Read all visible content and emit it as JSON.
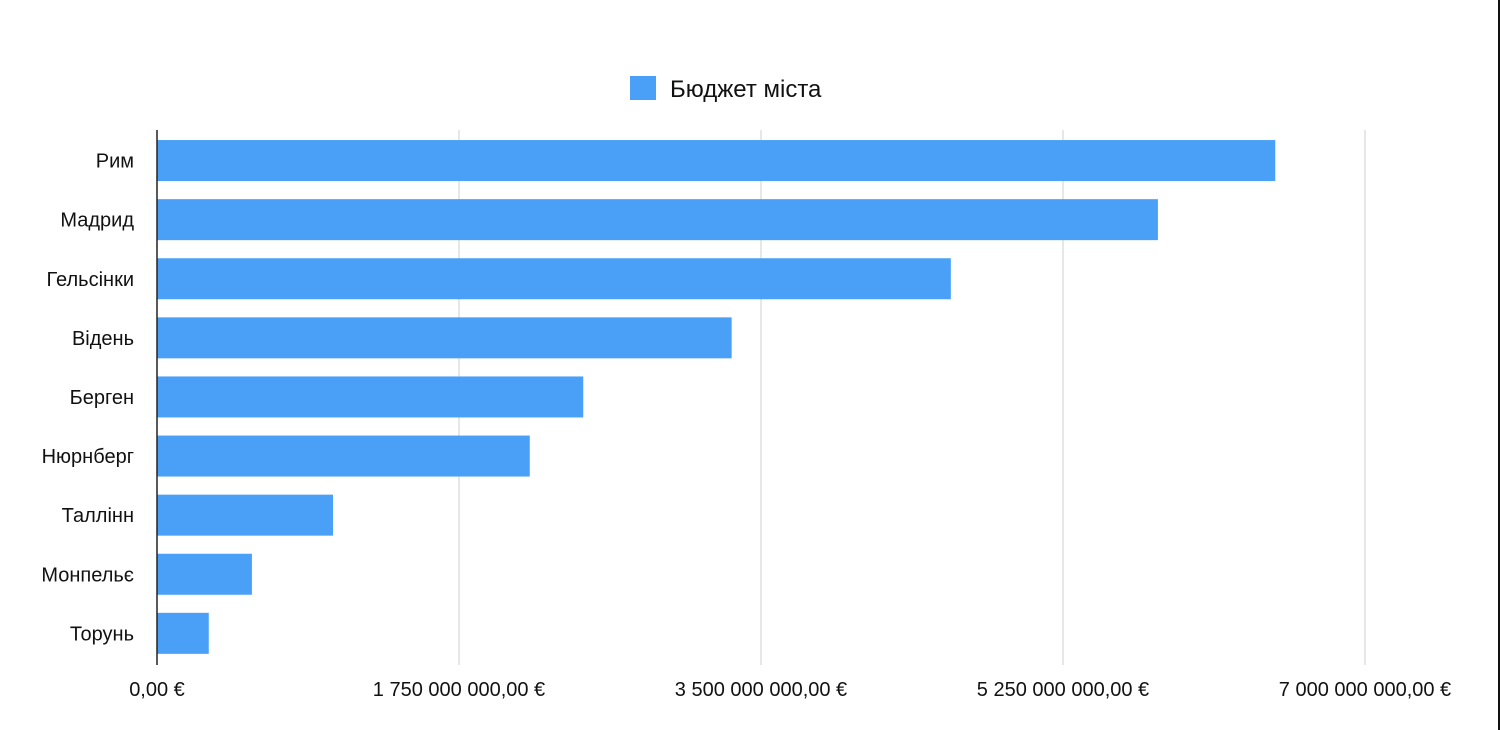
{
  "chart_data": {
    "type": "bar",
    "orientation": "horizontal",
    "categories": [
      "Рим",
      "Мадрид",
      "Гельсінки",
      "Відень",
      "Берген",
      "Нюрнберг",
      "Таллінн",
      "Монпельє",
      "Торунь"
    ],
    "series": [
      {
        "name": "Бюджет міста",
        "values": [
          6480000000,
          5800000000,
          4600000000,
          3330000000,
          2470000000,
          2160000000,
          1020000000,
          550000000,
          300000000
        ]
      }
    ],
    "xlim": [
      0,
      7000000000
    ],
    "xticks": [
      0,
      1750000000,
      3500000000,
      5250000000,
      7000000000
    ],
    "xtick_labels": [
      "0,00 €",
      "1 750 000 000,00 €",
      "3 500 000 000,00 €",
      "5 250 000 000,00 €",
      "7 000 000 000,00 €"
    ],
    "grid": true,
    "legend_position": "top-center",
    "bar_color": "#4aa0f7"
  }
}
